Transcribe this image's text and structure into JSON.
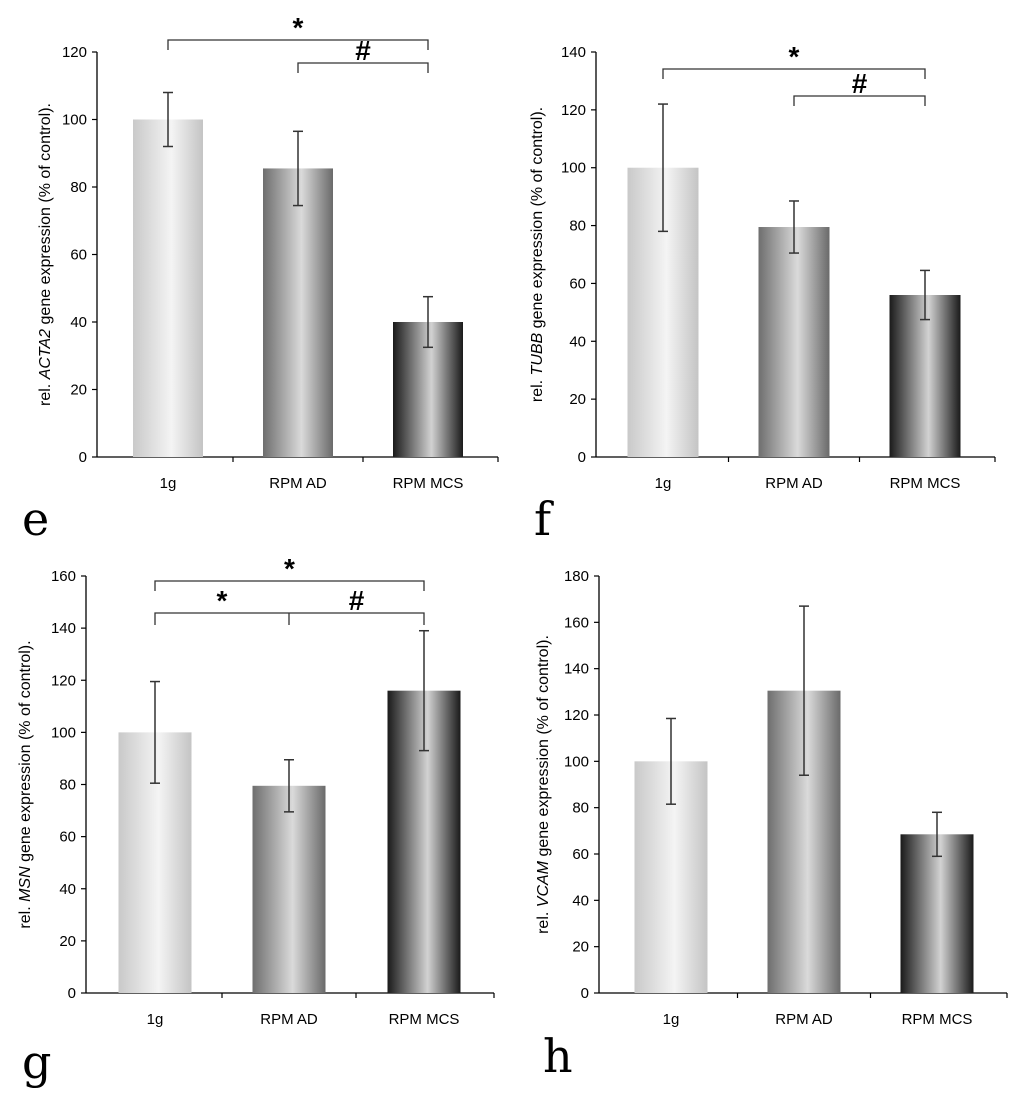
{
  "chart_data": [
    {
      "type": "bar",
      "panel": "",
      "categories": [
        "1g",
        "RPM AD",
        "RPM MCS"
      ],
      "values": [
        100,
        85.5,
        40
      ],
      "errors": [
        8,
        11,
        7.5
      ],
      "ylabel": {
        "prefix": "rel. ",
        "gene": "ACTA2",
        "suffix": " gene expression (% of control)."
      },
      "ylim": [
        0,
        120
      ],
      "ytick_step": 20,
      "significance": [
        {
          "from": 0,
          "to": 2,
          "symbol": "*"
        },
        {
          "from": 1,
          "to": 2,
          "symbol": "#"
        }
      ]
    },
    {
      "type": "bar",
      "panel": "",
      "categories": [
        "1g",
        "RPM AD",
        "RPM MCS"
      ],
      "values": [
        100,
        79.5,
        56
      ],
      "errors": [
        22,
        9,
        8.5
      ],
      "ylabel": {
        "prefix": "rel. ",
        "gene": "TUBB",
        "suffix": " gene expression (% of control)."
      },
      "ylim": [
        0,
        140
      ],
      "ytick_step": 20,
      "significance": [
        {
          "from": 0,
          "to": 2,
          "symbol": "*"
        },
        {
          "from": 1,
          "to": 2,
          "symbol": "#"
        }
      ]
    },
    {
      "type": "bar",
      "panel": "g",
      "categories": [
        "1g",
        "RPM AD",
        "RPM MCS"
      ],
      "values": [
        100,
        79.5,
        116
      ],
      "errors": [
        19.5,
        10,
        23
      ],
      "ylabel": {
        "prefix": "rel. ",
        "gene": "MSN",
        "suffix": " gene expression (% of control)."
      },
      "ylim": [
        0,
        160
      ],
      "ytick_step": 20,
      "significance": [
        {
          "from": 0,
          "to": 2,
          "symbol": "*"
        },
        {
          "from": 0,
          "to": 1,
          "symbol": "*"
        },
        {
          "from": 1,
          "to": 2,
          "symbol": "#"
        }
      ]
    },
    {
      "type": "bar",
      "panel": "h",
      "categories": [
        "1g",
        "RPM AD",
        "RPM MCS"
      ],
      "values": [
        100,
        130.5,
        68.5
      ],
      "errors": [
        18.5,
        36.5,
        9.5
      ],
      "ylabel": {
        "prefix": "rel. ",
        "gene": "VCAM",
        "suffix": " gene expression (% of control)."
      },
      "ylim": [
        0,
        180
      ],
      "ytick_step": 20,
      "significance": []
    }
  ],
  "panel_labels": [
    "e",
    "f",
    "g",
    "h"
  ]
}
